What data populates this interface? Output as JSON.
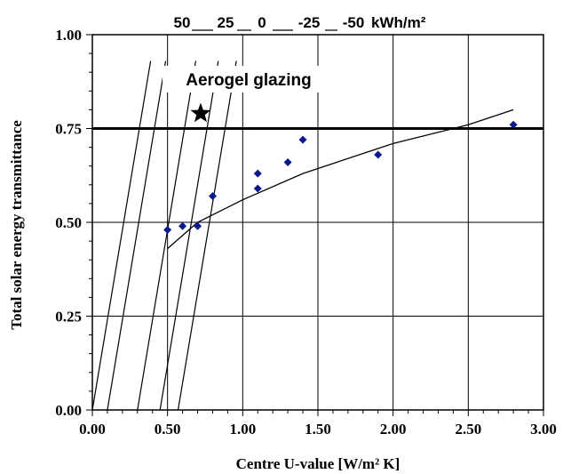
{
  "chart_data": {
    "type": "scatter",
    "xlabel": "Centre U-value [W/m² K]",
    "ylabel": "Total solar energy transmittance",
    "xlim": [
      0,
      3
    ],
    "ylim": [
      0,
      1
    ],
    "x_ticks": [
      "0.00",
      "0.50",
      "1.00",
      "1.50",
      "2.00",
      "2.50",
      "3.00"
    ],
    "y_ticks": [
      "0.00",
      "0.25",
      "0.50",
      "0.75",
      "1.00"
    ],
    "grid": true,
    "series": [
      {
        "points": [
          {
            "x": 0.5,
            "y": 0.48
          },
          {
            "x": 0.6,
            "y": 0.49
          },
          {
            "x": 0.7,
            "y": 0.49
          },
          {
            "x": 0.8,
            "y": 0.57
          },
          {
            "x": 1.1,
            "y": 0.59
          },
          {
            "x": 1.1,
            "y": 0.63
          },
          {
            "x": 1.3,
            "y": 0.66
          },
          {
            "x": 1.4,
            "y": 0.72
          },
          {
            "x": 1.9,
            "y": 0.68
          },
          {
            "x": 2.8,
            "y": 0.76
          }
        ],
        "color": "#0a1a8c"
      }
    ],
    "trend_curve": [
      {
        "x": 0.5,
        "y": 0.43
      },
      {
        "x": 0.7,
        "y": 0.5
      },
      {
        "x": 1.0,
        "y": 0.56
      },
      {
        "x": 1.4,
        "y": 0.63
      },
      {
        "x": 2.0,
        "y": 0.71
      },
      {
        "x": 2.5,
        "y": 0.76
      },
      {
        "x": 2.8,
        "y": 0.8
      }
    ],
    "reference_line": {
      "y": 0.75
    },
    "highlight_point": {
      "x": 0.72,
      "y": 0.79,
      "label": "Aerogel glazing",
      "marker": "star"
    },
    "iso_lines": {
      "labels": [
        "50",
        "25",
        "0",
        "-25",
        "-50"
      ],
      "unit": "kWh/m²",
      "slope": 2.4,
      "x_intercepts": [
        0.0,
        0.1,
        0.3,
        0.45,
        0.57
      ]
    }
  }
}
